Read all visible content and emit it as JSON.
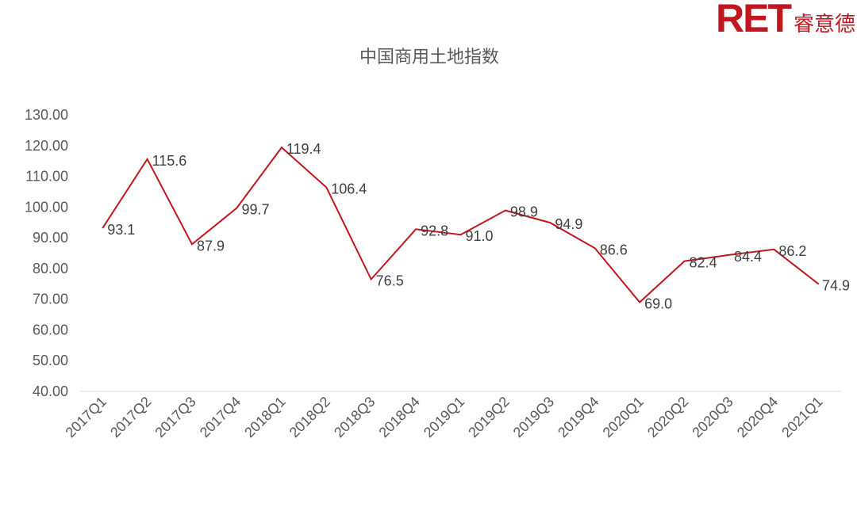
{
  "logo": {
    "mark": "RET",
    "name_cn": "睿意德"
  },
  "chart_data": {
    "type": "line",
    "title": "中国商用土地指数",
    "xlabel": "",
    "ylabel": "",
    "categories": [
      "2017Q1",
      "2017Q2",
      "2017Q3",
      "2017Q4",
      "2018Q1",
      "2018Q2",
      "2018Q3",
      "2018Q4",
      "2019Q1",
      "2019Q2",
      "2019Q3",
      "2019Q4",
      "2020Q1",
      "2020Q2",
      "2020Q3",
      "2020Q4",
      "2021Q1"
    ],
    "series": [
      {
        "values": [
          93.1,
          115.6,
          87.9,
          99.7,
          119.4,
          106.4,
          76.5,
          92.8,
          91.0,
          98.9,
          94.9,
          86.6,
          69.0,
          82.4,
          84.4,
          86.2,
          74.9
        ],
        "data_labels": [
          "93.1",
          "115.6",
          "87.9",
          "99.7",
          "119.4",
          "106.4",
          "76.5",
          "92.8",
          "91.0",
          "98.9",
          "94.9",
          "86.6",
          "69.0",
          "82.4",
          "84.4",
          "86.2",
          "74.9"
        ]
      }
    ],
    "ylim": [
      40,
      130
    ],
    "yticks": [
      "40.00",
      "50.00",
      "60.00",
      "70.00",
      "80.00",
      "90.00",
      "100.00",
      "110.00",
      "120.00",
      "130.00"
    ],
    "grid": false,
    "legend": "none",
    "colors": {
      "line": "#c0171f",
      "text": "#595959",
      "axis": "#d9d9d9"
    }
  }
}
